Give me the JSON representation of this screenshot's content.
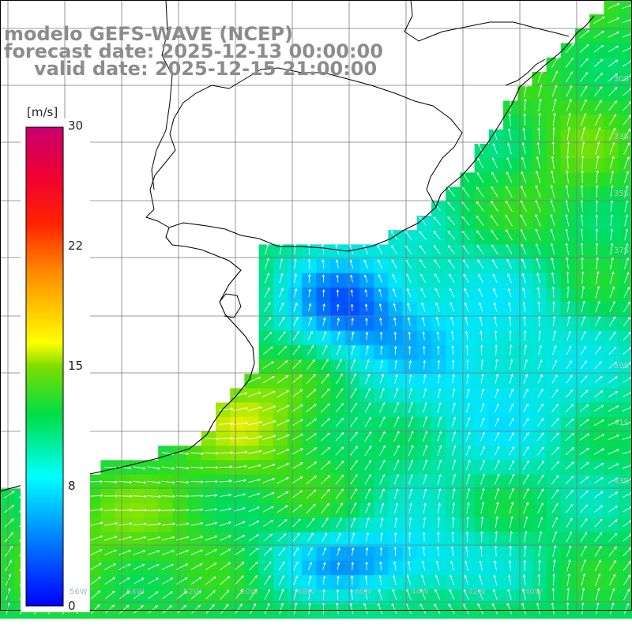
{
  "header": {
    "model_line": "modelo GEFS-WAVE (NCEP)",
    "forecast_line": "forecast date: 2025-12-13 00:00:00",
    "valid_line": "valid date: 2025-12-15 21:00:00"
  },
  "colorbar": {
    "unit": "[m/s]",
    "ticks": [
      "30",
      "22",
      "15",
      "8",
      "0"
    ],
    "min": 0,
    "max": 30
  },
  "map": {
    "lat_labels": [
      "30S",
      "33S",
      "35S",
      "37S",
      "39S",
      "41S",
      "43S"
    ],
    "lon_labels": [
      "56W",
      "54W",
      "52W",
      "50W",
      "48W",
      "46W",
      "44W",
      "42W",
      "40W"
    ],
    "land_color": "#ffffff",
    "coast_color": "#000000",
    "grid_color": "#808080",
    "arrow_color": "#ffffff"
  }
}
